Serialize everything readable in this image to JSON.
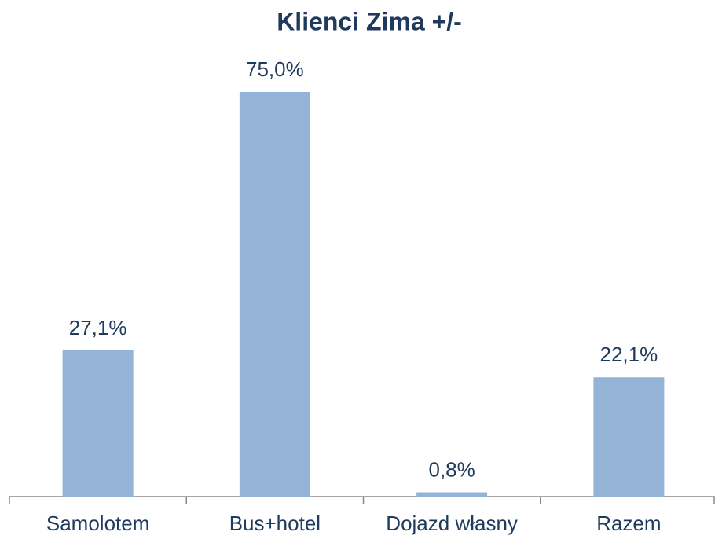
{
  "chart_data": {
    "type": "bar",
    "title": "Klienci Zima +/-",
    "categories": [
      "Samolotem",
      "Bus+hotel",
      "Dojazd własny",
      "Razem"
    ],
    "values": [
      27.1,
      75.0,
      0.8,
      22.1
    ],
    "value_labels": [
      "27,1%",
      "75,0%",
      "0,8%",
      "22,1%"
    ],
    "color": "#95b3d7"
  }
}
